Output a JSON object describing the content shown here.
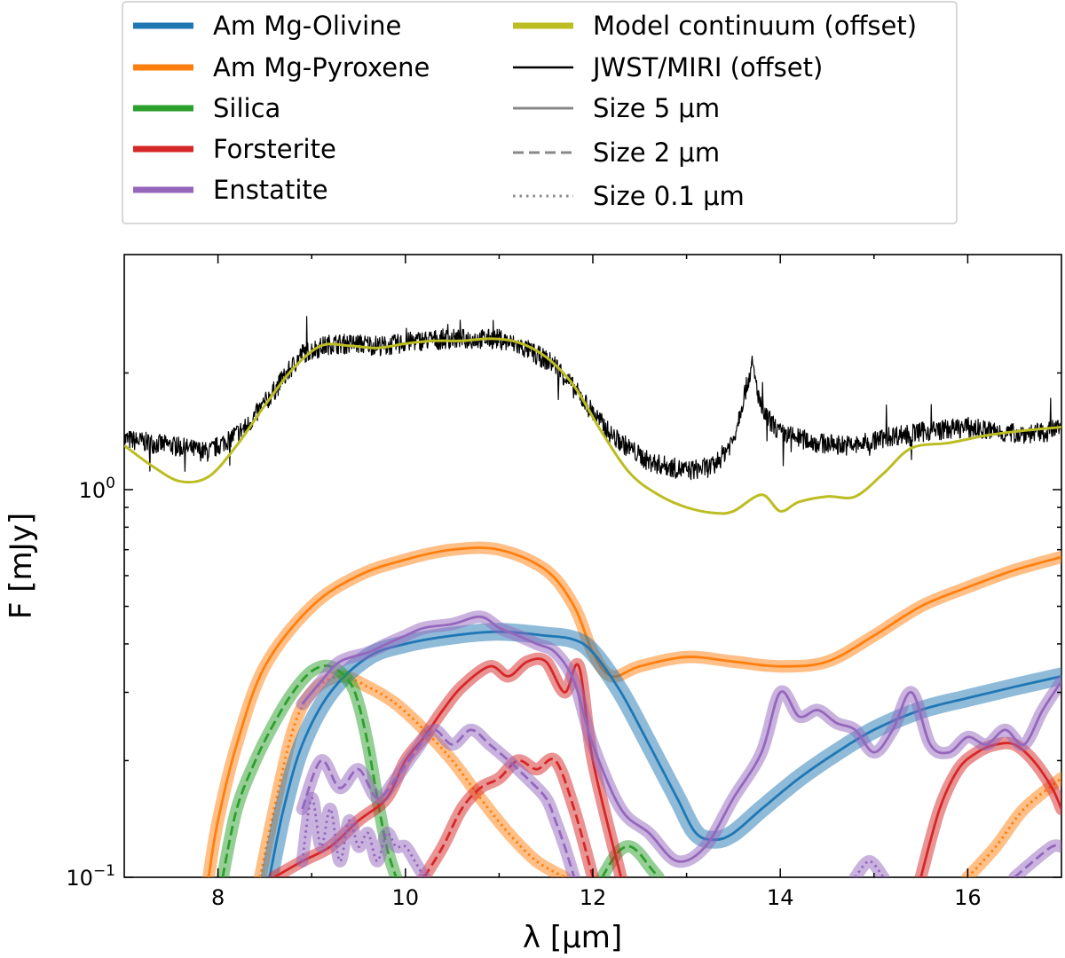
{
  "chart_data": {
    "type": "line",
    "xlabel": "λ [μm]",
    "ylabel": "F [mJy]",
    "xlim": [
      7,
      17
    ],
    "ylim": [
      0.1,
      2.3
    ],
    "yscale": "log",
    "grid": false,
    "legend_position": "top (above plot)",
    "x_ticks": [
      {
        "value": 8,
        "label": "8"
      },
      {
        "value": 10,
        "label": "10"
      },
      {
        "value": 12,
        "label": "12"
      },
      {
        "value": 14,
        "label": "14"
      },
      {
        "value": 16,
        "label": "16"
      }
    ],
    "y_ticks": [
      {
        "value": 1.0,
        "base": "10",
        "exp": "0"
      },
      {
        "value": 0.1,
        "base": "10",
        "exp": "−1"
      }
    ],
    "legend": [
      {
        "label": "Am Mg-Olivine",
        "color": "#1f77b4",
        "style": "thick"
      },
      {
        "label": "Am Mg-Pyroxene",
        "color": "#ff7f0e",
        "style": "thick"
      },
      {
        "label": "Silica",
        "color": "#2ca02c",
        "style": "thick"
      },
      {
        "label": "Forsterite",
        "color": "#d62728",
        "style": "thick"
      },
      {
        "label": "Enstatite",
        "color": "#9467bd",
        "style": "thick"
      },
      {
        "label": "Model continuum (offset)",
        "color": "#bcbd22",
        "style": "thick"
      },
      {
        "label": "JWST/MIRI (offset)",
        "color": "#000000",
        "style": "solid"
      },
      {
        "label": "Size 5 μm",
        "color": "#888888",
        "style": "solid"
      },
      {
        "label": "Size 2 μm",
        "color": "#888888",
        "style": "dashed"
      },
      {
        "label": "Size 0.1 μm",
        "color": "#888888",
        "style": "dotted"
      }
    ],
    "series": [
      {
        "name": "JWST/MIRI (offset)",
        "color": "#000000",
        "dash": "solid",
        "band": false,
        "width": 1.2,
        "noise": 0.06,
        "x": [
          7.0,
          7.5,
          7.9,
          8.3,
          8.6,
          8.9,
          9.2,
          9.5,
          9.8,
          10.1,
          10.4,
          10.7,
          11.0,
          11.3,
          11.6,
          11.9,
          12.2,
          12.6,
          13.0,
          13.3,
          13.5,
          13.6,
          13.7,
          13.8,
          14.0,
          14.4,
          14.8,
          15.2,
          15.6,
          16.0,
          16.4,
          16.8,
          17.0
        ],
        "y": [
          1.35,
          1.3,
          1.25,
          1.45,
          1.8,
          2.25,
          2.38,
          2.38,
          2.35,
          2.42,
          2.45,
          2.45,
          2.45,
          2.3,
          2.1,
          1.7,
          1.38,
          1.18,
          1.12,
          1.15,
          1.35,
          1.7,
          2.1,
          1.6,
          1.4,
          1.32,
          1.3,
          1.38,
          1.42,
          1.45,
          1.4,
          1.4,
          1.45
        ]
      },
      {
        "name": "Model continuum (offset)",
        "color": "#bcbd22",
        "dash": "solid",
        "band": false,
        "width": 3,
        "x": [
          7.0,
          7.3,
          7.6,
          7.9,
          8.2,
          8.5,
          8.8,
          9.1,
          9.4,
          9.7,
          10.0,
          10.3,
          10.6,
          10.9,
          11.2,
          11.5,
          11.8,
          12.1,
          12.4,
          12.7,
          13.0,
          13.3,
          13.5,
          13.8,
          14.0,
          14.2,
          14.5,
          14.8,
          15.1,
          15.4,
          15.8,
          16.2,
          16.6,
          17.0
        ],
        "y": [
          1.3,
          1.15,
          1.05,
          1.08,
          1.3,
          1.65,
          2.05,
          2.35,
          2.35,
          2.32,
          2.38,
          2.42,
          2.42,
          2.45,
          2.4,
          2.2,
          1.85,
          1.4,
          1.1,
          0.97,
          0.9,
          0.87,
          0.88,
          0.97,
          0.88,
          0.93,
          0.96,
          0.96,
          1.1,
          1.28,
          1.32,
          1.38,
          1.42,
          1.45
        ]
      },
      {
        "name": "Am Mg-Pyroxene",
        "color": "#ff7f0e",
        "dash": "solid",
        "band": true,
        "x": [
          7.9,
          8.0,
          8.2,
          8.5,
          9.0,
          9.5,
          10.0,
          10.5,
          11.0,
          11.5,
          11.8,
          12.0,
          12.2,
          12.5,
          13.0,
          13.5,
          14.0,
          14.5,
          15.0,
          15.5,
          16.0,
          16.5,
          17.0
        ],
        "y": [
          0.1,
          0.14,
          0.22,
          0.35,
          0.5,
          0.6,
          0.66,
          0.7,
          0.7,
          0.62,
          0.5,
          0.38,
          0.33,
          0.35,
          0.37,
          0.36,
          0.35,
          0.36,
          0.42,
          0.5,
          0.56,
          0.62,
          0.67
        ]
      },
      {
        "name": "Am Mg-Pyroxene",
        "color": "#ff7f0e",
        "dash": "dotted",
        "band": true,
        "x": [
          8.45,
          8.6,
          8.8,
          9.0,
          9.3,
          9.6,
          9.9,
          10.2,
          10.5,
          10.8,
          11.1,
          11.4,
          11.7
        ],
        "y": [
          0.1,
          0.15,
          0.24,
          0.3,
          0.33,
          0.31,
          0.28,
          0.24,
          0.2,
          0.16,
          0.13,
          0.11,
          0.1
        ]
      },
      {
        "name": "Am Mg-Pyroxene",
        "color": "#ff7f0e",
        "dash": "dotted",
        "band": true,
        "x": [
          16.0,
          16.3,
          16.6,
          17.0
        ],
        "y": [
          0.1,
          0.12,
          0.15,
          0.18
        ]
      },
      {
        "name": "Am Mg-Olivine",
        "color": "#1f77b4",
        "dash": "solid",
        "band": true,
        "x": [
          8.55,
          8.7,
          8.9,
          9.2,
          9.6,
          10.0,
          10.5,
          11.0,
          11.5,
          11.8,
          12.0,
          12.3,
          12.6,
          12.9,
          13.1,
          13.3,
          13.5,
          13.8,
          14.2,
          14.6,
          15.0,
          15.5,
          16.0,
          16.5,
          17.0
        ],
        "y": [
          0.1,
          0.15,
          0.22,
          0.3,
          0.37,
          0.4,
          0.42,
          0.43,
          0.42,
          0.41,
          0.38,
          0.3,
          0.22,
          0.16,
          0.13,
          0.125,
          0.13,
          0.15,
          0.18,
          0.21,
          0.24,
          0.27,
          0.29,
          0.31,
          0.33
        ]
      },
      {
        "name": "Silica",
        "color": "#2ca02c",
        "dash": "dashed",
        "band": true,
        "x": [
          8.05,
          8.2,
          8.4,
          8.6,
          8.8,
          9.0,
          9.2,
          9.4,
          9.5,
          9.6,
          9.7,
          9.8,
          9.9
        ],
        "y": [
          0.1,
          0.15,
          0.2,
          0.25,
          0.3,
          0.34,
          0.35,
          0.32,
          0.28,
          0.22,
          0.16,
          0.12,
          0.1
        ]
      },
      {
        "name": "Silica",
        "color": "#2ca02c",
        "dash": "dashed",
        "band": true,
        "x": [
          12.1,
          12.2,
          12.3,
          12.4,
          12.5,
          12.6,
          12.7
        ],
        "y": [
          0.1,
          0.11,
          0.118,
          0.12,
          0.115,
          0.107,
          0.1
        ]
      },
      {
        "name": "Forsterite",
        "color": "#d62728",
        "dash": "solid",
        "band": true,
        "x": [
          8.6,
          8.9,
          9.2,
          9.5,
          9.8,
          10.0,
          10.2,
          10.4,
          10.6,
          10.9,
          11.1,
          11.3,
          11.5,
          11.7,
          11.85,
          12.0,
          12.3
        ],
        "y": [
          0.1,
          0.11,
          0.12,
          0.14,
          0.16,
          0.2,
          0.23,
          0.27,
          0.31,
          0.35,
          0.33,
          0.36,
          0.36,
          0.3,
          0.35,
          0.2,
          0.1
        ]
      },
      {
        "name": "Forsterite",
        "color": "#d62728",
        "dash": "dashed",
        "band": true,
        "x": [
          10.2,
          10.4,
          10.6,
          10.8,
          11.0,
          11.2,
          11.4,
          11.6,
          11.8,
          12.0
        ],
        "y": [
          0.1,
          0.12,
          0.15,
          0.17,
          0.18,
          0.2,
          0.19,
          0.2,
          0.15,
          0.1
        ]
      },
      {
        "name": "Forsterite",
        "color": "#d62728",
        "dash": "solid",
        "band": true,
        "x": [
          15.5,
          15.7,
          15.9,
          16.1,
          16.3,
          16.5,
          16.7,
          16.9,
          17.0
        ],
        "y": [
          0.1,
          0.15,
          0.19,
          0.21,
          0.22,
          0.22,
          0.2,
          0.17,
          0.15
        ]
      },
      {
        "name": "Enstatite",
        "color": "#9467bd",
        "dash": "solid",
        "band": true,
        "x": [
          8.9,
          9.1,
          9.3,
          9.6,
          9.8,
          10.0,
          10.2,
          10.5,
          10.8,
          11.0,
          11.2,
          11.4,
          11.6,
          11.8,
          12.0,
          12.3,
          12.6,
          12.9,
          13.2,
          13.5,
          13.8,
          14.0,
          14.2,
          14.4,
          14.6,
          14.8,
          15.0,
          15.2,
          15.4,
          15.6,
          15.8,
          16.0,
          16.2,
          16.4,
          16.6,
          16.8,
          17.0
        ],
        "y": [
          0.28,
          0.32,
          0.36,
          0.38,
          0.4,
          0.42,
          0.44,
          0.45,
          0.47,
          0.44,
          0.42,
          0.4,
          0.38,
          0.32,
          0.22,
          0.15,
          0.13,
          0.11,
          0.12,
          0.16,
          0.21,
          0.3,
          0.26,
          0.27,
          0.25,
          0.24,
          0.21,
          0.24,
          0.3,
          0.22,
          0.21,
          0.23,
          0.22,
          0.24,
          0.22,
          0.27,
          0.32
        ]
      },
      {
        "name": "Enstatite",
        "color": "#9467bd",
        "dash": "dashed",
        "band": true,
        "x": [
          8.9,
          9.1,
          9.3,
          9.5,
          9.7,
          9.9,
          10.1,
          10.3,
          10.5,
          10.7,
          10.9,
          11.1,
          11.3,
          11.5,
          11.6,
          11.7,
          11.8
        ],
        "y": [
          0.15,
          0.2,
          0.17,
          0.19,
          0.16,
          0.18,
          0.21,
          0.24,
          0.22,
          0.24,
          0.22,
          0.2,
          0.18,
          0.16,
          0.14,
          0.12,
          0.1
        ]
      },
      {
        "name": "Enstatite",
        "color": "#9467bd",
        "dash": "dotted",
        "band": true,
        "x": [
          8.9,
          9.0,
          9.1,
          9.2,
          9.3,
          9.4,
          9.5,
          9.6,
          9.7,
          9.8,
          9.9,
          10.0,
          10.1,
          10.2
        ],
        "y": [
          0.11,
          0.16,
          0.12,
          0.15,
          0.11,
          0.14,
          0.12,
          0.13,
          0.11,
          0.13,
          0.12,
          0.12,
          0.11,
          0.1
        ]
      },
      {
        "name": "Enstatite",
        "color": "#9467bd",
        "dash": "dashed",
        "band": true,
        "x": [
          16.5,
          16.7,
          16.9,
          17.0
        ],
        "y": [
          0.1,
          0.11,
          0.12,
          0.12
        ]
      },
      {
        "name": "Enstatite",
        "color": "#9467bd",
        "dash": "dotted",
        "band": true,
        "x": [
          14.8,
          14.95,
          15.1
        ],
        "y": [
          0.1,
          0.11,
          0.1
        ]
      }
    ]
  }
}
